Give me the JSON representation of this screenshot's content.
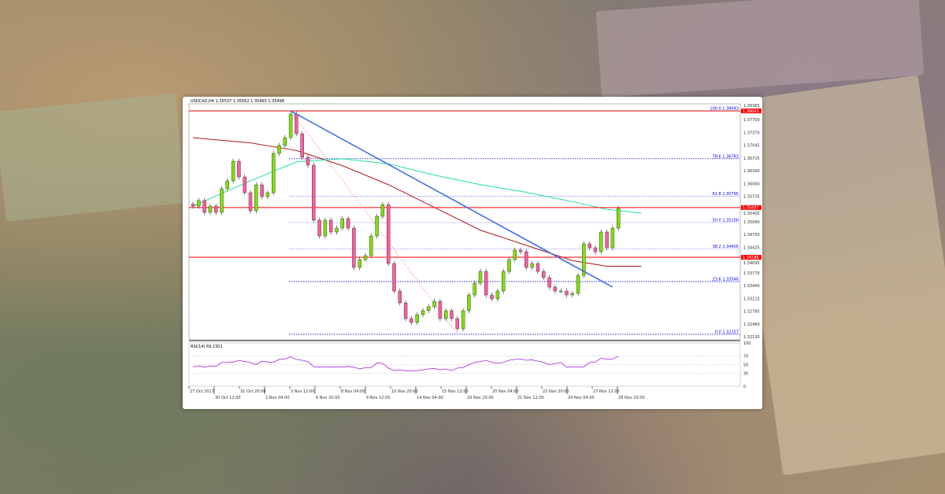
{
  "chart_data": {
    "type": "candlestick",
    "title": "USDCAD,H4  1.35537 1.35562 1.35465 1.35498",
    "symbol": "USDCAD,H4",
    "ohlc_header": [
      "1.35537",
      "1.35562",
      "1.35465",
      "1.35498"
    ],
    "colors": {
      "up": "#7fe00b",
      "down": "#ff5ca0",
      "level": "#ff0000",
      "trend": "#3d6fe8",
      "fib": "#0000ff",
      "ma_slow": "#b01818",
      "ma_fast": "#22e0a0",
      "rsi": "#a020e0"
    },
    "closes": [
      1.35535,
      1.3568,
      1.35369,
      1.35535,
      1.35369,
      1.35991,
      1.36198,
      1.36716,
      1.36302,
      1.35887,
      1.3541,
      1.36094,
      1.35783,
      1.35887,
      1.36924,
      1.37131,
      1.37338,
      1.3796,
      1.37442,
      1.3682,
      1.36613,
      1.35162,
      1.34747,
      1.35162,
      1.34851,
      1.34954,
      1.35203,
      1.34954,
      1.33918,
      1.34125,
      1.34229,
      1.34747,
      1.35265,
      1.35576,
      1.34021,
      1.33296,
      1.32985,
      1.3257,
      1.32467,
      1.32674,
      1.32778,
      1.32881,
      1.33026,
      1.3257,
      1.32778,
      1.3257,
      1.32301,
      1.32778,
      1.33192,
      1.33503,
      1.33814,
      1.33192,
      1.33089,
      1.33296,
      1.33814,
      1.34125,
      1.34374,
      1.34332,
      1.33918,
      1.34021,
      1.33814,
      1.33648,
      1.33399,
      1.33296,
      1.33296,
      1.33192,
      1.33234,
      1.3371,
      1.3454,
      1.34436,
      1.34332,
      1.34851,
      1.34436,
      1.34954,
      1.35472
    ],
    "ma_slow": [
      [
        0,
        1.37338
      ],
      [
        10,
        1.372
      ],
      [
        18,
        1.37
      ],
      [
        26,
        1.366
      ],
      [
        34,
        1.361
      ],
      [
        42,
        1.355
      ],
      [
        50,
        1.349
      ],
      [
        58,
        1.345
      ],
      [
        66,
        1.341
      ],
      [
        72,
        1.3395
      ],
      [
        78,
        1.3395
      ]
    ],
    "ma_fast": [
      [
        0,
        1.35535
      ],
      [
        10,
        1.362
      ],
      [
        18,
        1.367
      ],
      [
        26,
        1.3678
      ],
      [
        34,
        1.3665
      ],
      [
        42,
        1.3635
      ],
      [
        50,
        1.361
      ],
      [
        58,
        1.359
      ],
      [
        66,
        1.3565
      ],
      [
        72,
        1.3545
      ],
      [
        78,
        1.3535
      ]
    ],
    "horizontal_levels": [
      1.38043,
      1.35497,
      1.34186
    ],
    "level_labels": [
      "1.38043",
      "1.35497",
      "1.34186"
    ],
    "trendline": {
      "from": [
        17,
        1.38043
      ],
      "to": [
        73,
        1.334
      ]
    },
    "fib_line": {
      "from": [
        17,
        1.38043
      ],
      "to": [
        46,
        1.32157
      ]
    },
    "fib_levels": [
      {
        "label": "100.0 1.38043",
        "price": 1.38043
      },
      {
        "label": "78.6 1.36783",
        "price": 1.36783
      },
      {
        "label": "61.8 1.35795",
        "price": 1.35795
      },
      {
        "label": "50.0 1.35100",
        "price": 1.351
      },
      {
        "label": "38.2 1.34405",
        "price": 1.34405
      },
      {
        "label": "23.6 1.33546",
        "price": 1.33546
      },
      {
        "label": "0.0 1.32157",
        "price": 1.32157
      }
    ],
    "y_ticks": [
      "1.38365",
      "1.37700",
      "1.37370",
      "1.37045",
      "1.36715",
      "1.36390",
      "1.36060",
      "1.35735",
      "1.35405",
      "1.35080",
      "1.34750",
      "1.34425",
      "1.34095",
      "1.33770",
      "1.33440",
      "1.33115",
      "1.32785",
      "1.32460",
      "1.32130"
    ],
    "ylim": [
      1.3205,
      1.3845
    ],
    "x_ticks": [
      "27 Oct 2017",
      "30 Oct 12:00",
      "31 Oct 20:00",
      "2 Nov 04:00",
      "3 Nov 12:00",
      "6 Nov 20:00",
      "8 Nov 04:00",
      "9 Nov 12:00",
      "10 Nov 20:00",
      "14 Nov 04:00",
      "15 Nov 12:00",
      "16 Nov 20:00",
      "20 Nov 04:00",
      "21 Nov 12:00",
      "22 Nov 20:00",
      "24 Nov 04:00",
      "27 Nov 12:00",
      "28 Nov 20:00"
    ],
    "rsi": {
      "label": "RSI(14) 69.2301",
      "levels": [
        "100",
        "70",
        "50",
        "30",
        "0"
      ],
      "values": [
        45,
        47,
        44,
        47,
        46,
        55,
        55,
        56,
        60,
        57,
        55,
        50,
        58,
        56,
        55,
        62,
        63,
        68,
        62,
        60,
        57,
        45,
        44,
        45,
        44,
        45,
        44,
        46,
        44,
        40,
        43,
        43,
        54,
        53,
        42,
        36,
        38,
        36,
        35,
        36,
        38,
        40,
        41,
        38,
        40,
        36,
        42,
        43,
        50,
        55,
        57,
        60,
        55,
        53,
        55,
        60,
        62,
        63,
        60,
        61,
        58,
        55,
        50,
        52,
        55,
        44,
        45,
        44,
        45,
        55,
        56,
        65,
        62,
        63,
        69
      ]
    }
  }
}
